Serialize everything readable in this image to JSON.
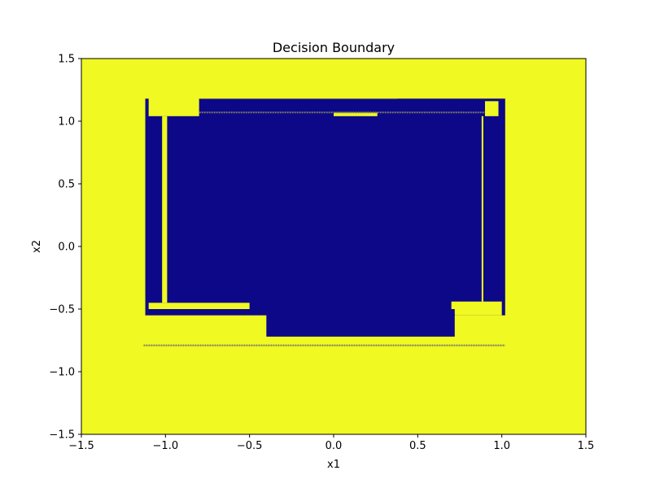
{
  "chart_data": {
    "type": "heatmap",
    "title": "Decision Boundary",
    "xlabel": "x1",
    "ylabel": "x2",
    "xlim": [
      -1.5,
      1.5
    ],
    "ylim": [
      -1.5,
      1.5
    ],
    "xticks": [
      "−1.5",
      "−1.0",
      "−0.5",
      "0.0",
      "0.5",
      "1.0",
      "1.5"
    ],
    "yticks": [
      "−1.5",
      "−1.0",
      "−0.5",
      "0.0",
      "0.5",
      "1.0",
      "1.5"
    ],
    "xtick_values": [
      -1.5,
      -1.0,
      -0.5,
      0.0,
      0.5,
      1.0,
      1.5
    ],
    "ytick_values": [
      -1.5,
      -1.0,
      -0.5,
      0.0,
      0.5,
      1.0,
      1.5
    ],
    "grid": false,
    "colors": {
      "class_0": "#0d0887",
      "class_1": "#f0f921",
      "boundary": "#7a7a6a"
    },
    "background_class": 1,
    "regions": [
      {
        "class": 0,
        "x": [
          -1.12,
          1.02
        ],
        "y": [
          -0.55,
          1.18
        ]
      },
      {
        "class": 1,
        "x": [
          -1.1,
          -0.8
        ],
        "y": [
          1.04,
          1.19
        ]
      },
      {
        "class": 1,
        "x": [
          -0.8,
          0.38
        ],
        "y": [
          1.18,
          1.22
        ]
      },
      {
        "class": 1,
        "x": [
          0.9,
          0.98
        ],
        "y": [
          1.04,
          1.16
        ]
      },
      {
        "class": 1,
        "x": [
          0.0,
          0.26
        ],
        "y": [
          1.04,
          1.07
        ]
      },
      {
        "class": 1,
        "x": [
          -1.02,
          -0.99
        ],
        "y": [
          -0.45,
          1.04
        ]
      },
      {
        "class": 1,
        "x": [
          0.88,
          0.89
        ],
        "y": [
          -0.44,
          1.04
        ]
      },
      {
        "class": 1,
        "x": [
          -1.1,
          -0.5
        ],
        "y": [
          -0.5,
          -0.45
        ]
      },
      {
        "class": 1,
        "x": [
          0.7,
          1.0
        ],
        "y": [
          -0.5,
          -0.44
        ]
      },
      {
        "class": 1,
        "x": [
          0.72,
          1.0
        ],
        "y": [
          -0.55,
          -0.5
        ]
      },
      {
        "class": 0,
        "x": [
          -0.4,
          0.72
        ],
        "y": [
          -0.72,
          -0.54
        ]
      }
    ],
    "boundary_lines": [
      {
        "x": [
          -1.13,
          1.02
        ],
        "y": -0.79
      },
      {
        "x": [
          -0.8,
          0.9
        ],
        "y": 1.07
      }
    ]
  }
}
